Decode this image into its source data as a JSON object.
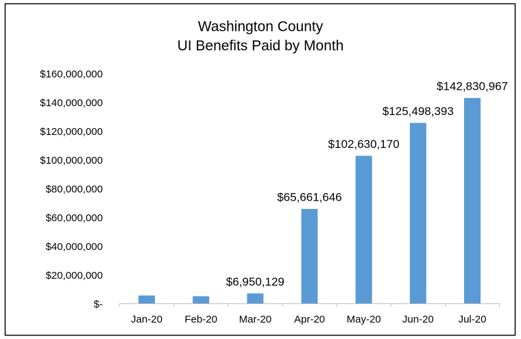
{
  "chart_data": {
    "type": "bar",
    "title": "Washington County",
    "subtitle": "UI Benefits Paid by Month",
    "categories": [
      "Jan-20",
      "Feb-20",
      "Mar-20",
      "Apr-20",
      "May-20",
      "Jun-20",
      "Jul-20"
    ],
    "values": [
      5500000,
      5000000,
      6950129,
      65661646,
      102630170,
      125498393,
      142830967
    ],
    "value_labels": [
      null,
      null,
      "$6,950,129",
      "$65,661,646",
      "$102,630,170",
      "$125,498,393",
      "$142,830,967"
    ],
    "color": "#5b9bd5",
    "ylim": [
      0,
      160000000
    ],
    "yticks": [
      {
        "value": 0,
        "label": "$-"
      },
      {
        "value": 20000000,
        "label": "$20,000,000"
      },
      {
        "value": 40000000,
        "label": "$40,000,000"
      },
      {
        "value": 60000000,
        "label": "$60,000,000"
      },
      {
        "value": 80000000,
        "label": "$80,000,000"
      },
      {
        "value": 100000000,
        "label": "$100,000,000"
      },
      {
        "value": 120000000,
        "label": "$120,000,000"
      },
      {
        "value": 140000000,
        "label": "$140,000,000"
      },
      {
        "value": 160000000,
        "label": "$160,000,000"
      }
    ],
    "grid": false
  }
}
